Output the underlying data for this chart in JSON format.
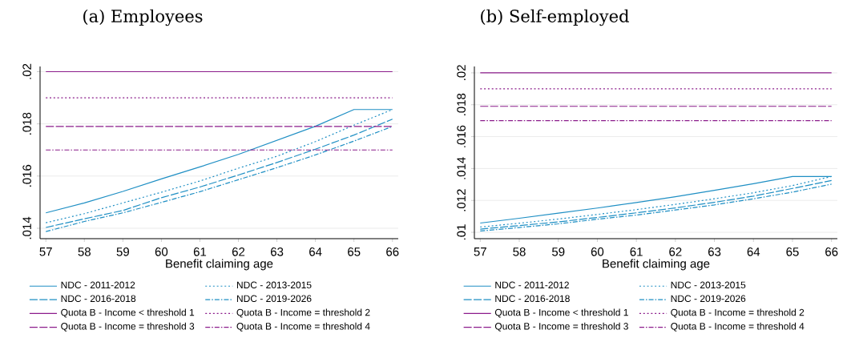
{
  "chart_data": [
    {
      "type": "line",
      "title": "(a) Employees",
      "xlabel": "Benefit claiming age",
      "x": [
        57,
        58,
        59,
        60,
        61,
        62,
        63,
        64,
        65,
        66
      ],
      "xlim": [
        56.85,
        66.15
      ],
      "xticks": [
        57,
        58,
        59,
        60,
        61,
        62,
        63,
        64,
        65,
        66
      ],
      "ylim": [
        0.0136,
        0.0202
      ],
      "yticks": [
        {
          "value": 0.014,
          "label": ".014"
        },
        {
          "value": 0.016,
          "label": ".016"
        },
        {
          "value": 0.018,
          "label": ".018"
        },
        {
          "value": 0.02,
          "label": ".02"
        }
      ],
      "grid": "y",
      "legend": "bottom",
      "series": [
        {
          "name": "NDC - 2011-2012",
          "color": "#1f8fc4",
          "line_style": "solid",
          "values": [
            0.01459,
            0.01497,
            0.01541,
            0.01589,
            0.01635,
            0.01683,
            0.01737,
            0.01791,
            0.01855,
            0.01855
          ]
        },
        {
          "name": "NDC - 2013-2015",
          "color": "#1f8fc4",
          "line_style": "dotted",
          "values": [
            0.01421,
            0.01456,
            0.01497,
            0.01538,
            0.01581,
            0.0163,
            0.01676,
            0.01732,
            0.01795,
            0.01855
          ]
        },
        {
          "name": "NDC - 2016-2018",
          "color": "#1f8fc4",
          "line_style": "dashed",
          "values": [
            0.01403,
            0.01436,
            0.01468,
            0.01517,
            0.01558,
            0.01604,
            0.01652,
            0.01703,
            0.01757,
            0.01818
          ]
        },
        {
          "name": "NDC - 2019-2026",
          "color": "#1f8fc4",
          "line_style": "dashdot",
          "values": [
            0.01387,
            0.01426,
            0.01459,
            0.01499,
            0.0154,
            0.01586,
            0.01632,
            0.01681,
            0.01734,
            0.0179
          ]
        },
        {
          "name": "Quota B - Income < threshold 1",
          "color": "#8b1c8b",
          "line_style": "solid",
          "values": [
            0.02,
            0.02,
            0.02,
            0.02,
            0.02,
            0.02,
            0.02,
            0.02,
            0.02,
            0.02
          ]
        },
        {
          "name": "Quota B - Income = threshold 2",
          "color": "#8b1c8b",
          "line_style": "dotted",
          "values": [
            0.019,
            0.019,
            0.019,
            0.019,
            0.019,
            0.019,
            0.019,
            0.019,
            0.019,
            0.019
          ]
        },
        {
          "name": "Quota B - Income = threshold 3",
          "color": "#8b1c8b",
          "line_style": "dashed",
          "values": [
            0.0179,
            0.0179,
            0.0179,
            0.0179,
            0.0179,
            0.0179,
            0.0179,
            0.0179,
            0.0179,
            0.0179
          ]
        },
        {
          "name": "Quota B - Income = threshold 4",
          "color": "#8b1c8b",
          "line_style": "dashdot",
          "values": [
            0.017,
            0.017,
            0.017,
            0.017,
            0.017,
            0.017,
            0.017,
            0.017,
            0.017,
            0.017
          ]
        }
      ]
    },
    {
      "type": "line",
      "title": "(b) Self-employed",
      "xlabel": "Benefit claiming age",
      "x": [
        57,
        58,
        59,
        60,
        61,
        62,
        63,
        64,
        65,
        66
      ],
      "xlim": [
        56.85,
        66.15
      ],
      "xticks": [
        57,
        58,
        59,
        60,
        61,
        62,
        63,
        64,
        65,
        66
      ],
      "ylim": [
        0.0096,
        0.0204
      ],
      "yticks": [
        {
          "value": 0.01,
          "label": ".01"
        },
        {
          "value": 0.012,
          "label": ".012"
        },
        {
          "value": 0.014,
          "label": ".014"
        },
        {
          "value": 0.016,
          "label": ".016"
        },
        {
          "value": 0.018,
          "label": ".018"
        },
        {
          "value": 0.02,
          "label": ".02"
        }
      ],
      "grid": "y",
      "legend": "bottom",
      "series": [
        {
          "name": "NDC - 2011-2012",
          "color": "#1f8fc4",
          "line_style": "solid",
          "values": [
            0.01058,
            0.01088,
            0.0112,
            0.01152,
            0.01187,
            0.01223,
            0.01263,
            0.01305,
            0.0135,
            0.0135
          ]
        },
        {
          "name": "NDC - 2013-2015",
          "color": "#1f8fc4",
          "line_style": "dotted",
          "values": [
            0.01033,
            0.01057,
            0.01083,
            0.01112,
            0.01142,
            0.01175,
            0.0121,
            0.01248,
            0.01293,
            0.0135
          ]
        },
        {
          "name": "NDC - 2016-2018",
          "color": "#1f8fc4",
          "line_style": "dashed",
          "values": [
            0.0102,
            0.01042,
            0.01065,
            0.01093,
            0.01122,
            0.01153,
            0.01188,
            0.01227,
            0.01275,
            0.01325
          ]
        },
        {
          "name": "NDC - 2019-2026",
          "color": "#1f8fc4",
          "line_style": "dashdot",
          "values": [
            0.01008,
            0.0103,
            0.01053,
            0.01082,
            0.01108,
            0.0114,
            0.01172,
            0.0121,
            0.01252,
            0.01302
          ]
        },
        {
          "name": "Quota B - Income < threshold 1",
          "color": "#8b1c8b",
          "line_style": "solid",
          "values": [
            0.02,
            0.02,
            0.02,
            0.02,
            0.02,
            0.02,
            0.02,
            0.02,
            0.02,
            0.02
          ]
        },
        {
          "name": "Quota B - Income = threshold 2",
          "color": "#8b1c8b",
          "line_style": "dotted",
          "values": [
            0.019,
            0.019,
            0.019,
            0.019,
            0.019,
            0.019,
            0.019,
            0.019,
            0.019,
            0.019
          ]
        },
        {
          "name": "Quota B - Income = threshold 3",
          "color": "#8b1c8b",
          "line_style": "dashed",
          "values": [
            0.0179,
            0.0179,
            0.0179,
            0.0179,
            0.0179,
            0.0179,
            0.0179,
            0.0179,
            0.0179,
            0.0179
          ]
        },
        {
          "name": "Quota B - Income = threshold 4",
          "color": "#8b1c8b",
          "line_style": "dashdot",
          "values": [
            0.017,
            0.017,
            0.017,
            0.017,
            0.017,
            0.017,
            0.017,
            0.017,
            0.017,
            0.017
          ]
        }
      ]
    }
  ]
}
